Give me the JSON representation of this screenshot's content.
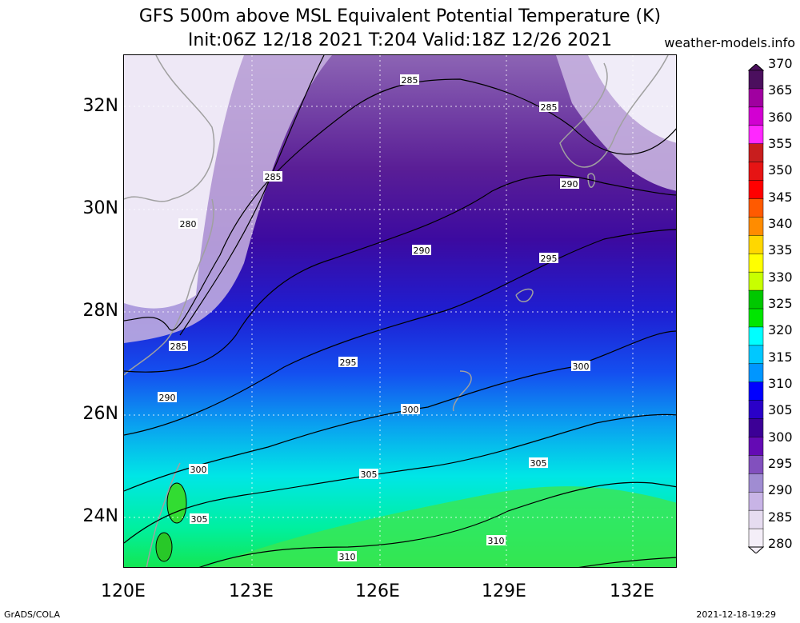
{
  "title": {
    "line1": "GFS 500m above MSL Equivalent Potential Temperature (K)",
    "line2": "Init:06Z 12/18 2021 T:204 Valid:18Z 12/26 2021"
  },
  "site": "weather-models.info",
  "axes": {
    "lat_ticks": [
      "32N",
      "30N",
      "28N",
      "26N",
      "24N"
    ],
    "lon_ticks": [
      "120E",
      "123E",
      "126E",
      "129E",
      "132E"
    ]
  },
  "contour_labels": [
    {
      "text": "285"
    },
    {
      "text": "285"
    },
    {
      "text": "285"
    },
    {
      "text": "285"
    },
    {
      "text": "280"
    },
    {
      "text": "290"
    },
    {
      "text": "290"
    },
    {
      "text": "290"
    },
    {
      "text": "295"
    },
    {
      "text": "295"
    },
    {
      "text": "300"
    },
    {
      "text": "300"
    },
    {
      "text": "300"
    },
    {
      "text": "305"
    },
    {
      "text": "305"
    },
    {
      "text": "305"
    },
    {
      "text": "310"
    },
    {
      "text": "310"
    }
  ],
  "colorbar": {
    "labels": [
      "370",
      "365",
      "360",
      "355",
      "350",
      "345",
      "340",
      "335",
      "330",
      "325",
      "320",
      "315",
      "310",
      "305",
      "300",
      "295",
      "290",
      "285",
      "280"
    ],
    "colors": [
      "#4b0f5e",
      "#a000a0",
      "#d200d2",
      "#ff28ff",
      "#c81e1e",
      "#e61414",
      "#ff0000",
      "#ff5a00",
      "#ff8c00",
      "#ffd700",
      "#ffff00",
      "#c8ff00",
      "#00c800",
      "#00e600",
      "#00ffff",
      "#00c8ff",
      "#0096ff",
      "#0000ff",
      "#2a00c8",
      "#3c0096",
      "#640ab4",
      "#8250be",
      "#a08cd2",
      "#c8b4e6",
      "#e6dcf0",
      "#f4eef8"
    ]
  },
  "footer": {
    "left": "GrADS/COLA",
    "right": "2021-12-18-19:29"
  }
}
